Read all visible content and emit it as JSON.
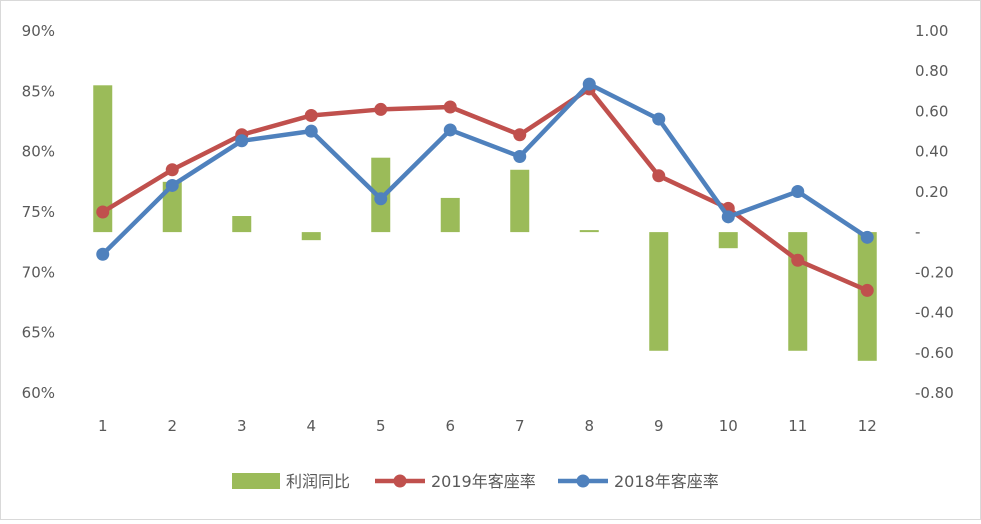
{
  "chart_data": {
    "type": "bar+line",
    "categories": [
      "1",
      "2",
      "3",
      "4",
      "5",
      "6",
      "7",
      "8",
      "9",
      "10",
      "11",
      "12"
    ],
    "left_axis": {
      "ticks": [
        "90%",
        "85%",
        "80%",
        "75%",
        "70%",
        "65%",
        "60%"
      ],
      "tick_values": [
        90,
        85,
        80,
        75,
        70,
        65,
        60
      ],
      "ylim": [
        60,
        90
      ]
    },
    "right_axis": {
      "ticks": [
        "1.00",
        "0.80",
        "0.60",
        "0.40",
        "0.20",
        "-",
        "-0.20",
        "-0.40",
        "-0.60",
        "-0.80"
      ],
      "tick_values": [
        1.0,
        0.8,
        0.6,
        0.4,
        0.2,
        0,
        -0.2,
        -0.4,
        -0.6,
        -0.8
      ],
      "ylim": [
        -0.8,
        1.0
      ]
    },
    "bar_series": {
      "name": "利润同比",
      "axis": "right",
      "color": "#9bbb59",
      "values": [
        0.73,
        0.25,
        0.08,
        -0.04,
        0.37,
        0.17,
        0.31,
        0.01,
        -0.59,
        -0.08,
        -0.59,
        -0.64
      ]
    },
    "line_series": [
      {
        "name": "2019年客座率",
        "axis": "left",
        "color": "#c0504d",
        "values": [
          75.0,
          78.5,
          81.4,
          83.0,
          83.5,
          83.7,
          81.4,
          85.2,
          78.0,
          75.3,
          71.0,
          68.5
        ]
      },
      {
        "name": "2018年客座率",
        "axis": "left",
        "color": "#4f81bd",
        "values": [
          71.5,
          77.2,
          80.9,
          81.7,
          76.1,
          81.8,
          79.6,
          85.6,
          82.7,
          74.6,
          76.7,
          72.9
        ]
      }
    ],
    "legend_position": "bottom",
    "grid": false
  }
}
